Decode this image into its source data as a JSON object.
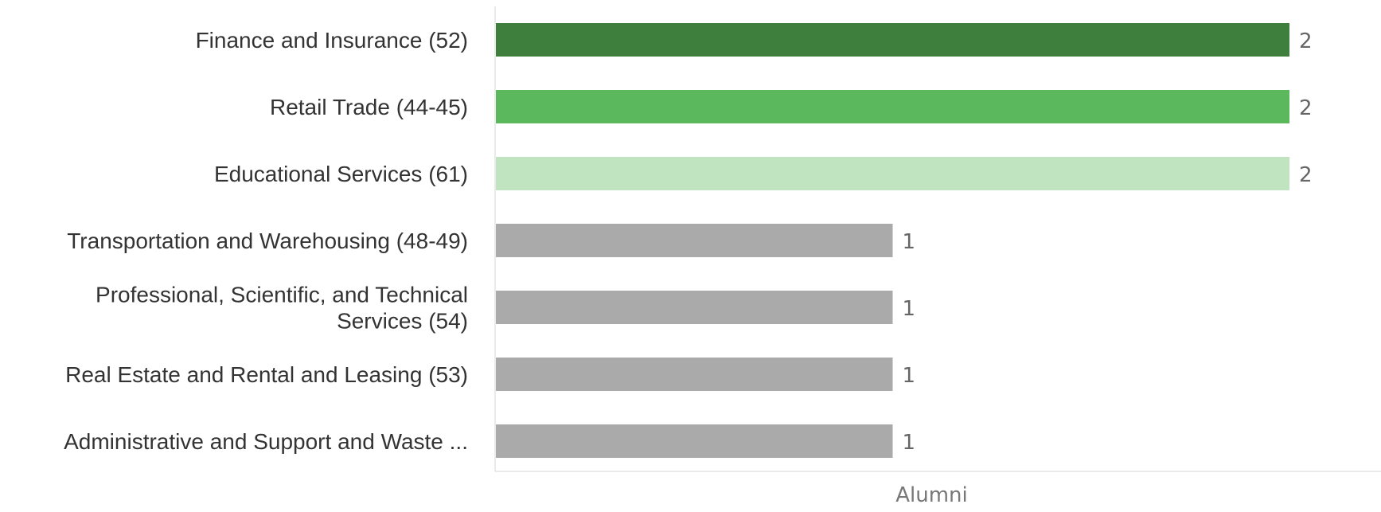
{
  "chart_data": {
    "type": "bar",
    "orientation": "horizontal",
    "categories": [
      "Finance and Insurance (52)",
      "Retail Trade (44-45)",
      "Educational Services (61)",
      "Transportation and Warehousing (48-49)",
      "Professional, Scientific, and Technical Services (54)",
      "Real Estate and Rental and Leasing (53)",
      "Administrative and Support and Waste ..."
    ],
    "category_label_lines": [
      [
        "Finance and Insurance (52)"
      ],
      [
        "Retail Trade (44-45)"
      ],
      [
        "Educational Services (61)"
      ],
      [
        "Transportation and Warehousing (48-49)"
      ],
      [
        "Professional, Scientific, and Technical",
        "Services (54)"
      ],
      [
        "Real Estate and Rental and Leasing (53)"
      ],
      [
        "Administrative and Support and Waste ..."
      ]
    ],
    "values": [
      2,
      2,
      2,
      1,
      1,
      1,
      1
    ],
    "value_labels": [
      "2",
      "2",
      "2",
      "1",
      "1",
      "1",
      "1"
    ],
    "colors": [
      "#3e7f3e",
      "#5cb85c",
      "#c0e4c0",
      "#aaaaaa",
      "#aaaaaa",
      "#aaaaaa",
      "#aaaaaa"
    ],
    "title": "",
    "xlabel": "Alumni",
    "ylabel": "",
    "xlim": [
      0,
      2
    ],
    "grid": false,
    "legend": "none"
  }
}
